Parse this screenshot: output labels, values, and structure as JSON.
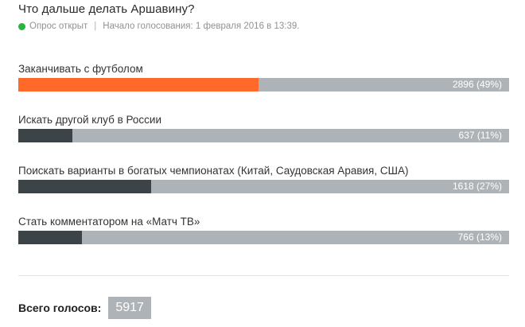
{
  "poll": {
    "title": "Что дальше делать Аршавину?",
    "status": "Опрос открыт",
    "separator": "|",
    "started": "Начало голосования: 1 февраля 2016 в 13:39.",
    "colors": {
      "leading": "#ff6a2b",
      "other": "#3d4448",
      "track": "#aeb3b7",
      "status": "#27b43f"
    },
    "options": [
      {
        "label": "Заканчивать с футболом",
        "value_text": "2896 (49%)",
        "votes": 2896,
        "percent": 49,
        "leading": true
      },
      {
        "label": "Искать другой клуб в России",
        "value_text": "637 (11%)",
        "votes": 637,
        "percent": 11,
        "leading": false
      },
      {
        "label": "Поискать варианты в богатых чемпионатах (Китай, Саудовская Аравия, США)",
        "value_text": "1618 (27%)",
        "votes": 1618,
        "percent": 27,
        "leading": false
      },
      {
        "label": "Стать комментатором на «Матч ТВ»",
        "value_text": "766 (13%)",
        "votes": 766,
        "percent": 13,
        "leading": false
      }
    ],
    "total_label": "Всего голосов:",
    "total_value": "5917"
  }
}
